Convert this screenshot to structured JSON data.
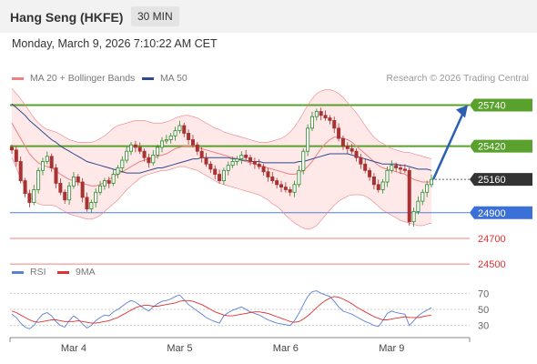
{
  "header": {
    "title": "Hang Seng (HKFE)",
    "timeframe": "30 MIN"
  },
  "date_line": "Monday, March 9, 2026 7:10:22 AM CET",
  "legend": {
    "bb_label": "MA 20 + Bollinger Bands",
    "ma50_label": "MA 50",
    "rsi_label": "RSI",
    "rsi_ma_label": "9MA"
  },
  "research_label": "Research © 2026 Trading Central",
  "colors": {
    "bb": "#f08080",
    "bb_fill": "#fde0e0",
    "ma50": "#2c4a8c",
    "resistance": "#5aa02c",
    "pivot": "#4a80e0",
    "support": "#f08080",
    "candle_up": "#2a8a2a",
    "candle_down": "#a83232",
    "rsi": "#5b80d8",
    "rsi_ma": "#e03030",
    "arrow": "#2c5fb0"
  },
  "chart_data": [
    {
      "type": "candlestick",
      "title": "",
      "x_ticks": [
        "Mar 4",
        "Mar 5",
        "Mar 6",
        "Mar 9"
      ],
      "y_range": [
        24430,
        25850
      ],
      "levels": [
        {
          "value": 25740,
          "label": "25740",
          "kind": "resistance"
        },
        {
          "value": 25420,
          "label": "25420",
          "kind": "resistance"
        },
        {
          "value": 25160,
          "label": "25160",
          "kind": "last"
        },
        {
          "value": 24900,
          "label": "24900",
          "kind": "pivot"
        },
        {
          "value": 24700,
          "label": "24700",
          "kind": "support"
        },
        {
          "value": 24500,
          "label": "24500",
          "kind": "support"
        }
      ],
      "close": [
        25390,
        25300,
        25150,
        25050,
        24980,
        25080,
        25230,
        25300,
        25340,
        25250,
        25130,
        25060,
        25000,
        25110,
        25180,
        25140,
        25020,
        24930,
        24980,
        25060,
        25110,
        25150,
        25130,
        25200,
        25250,
        25310,
        25380,
        25430,
        25410,
        25380,
        25330,
        25290,
        25350,
        25410,
        25460,
        25470,
        25500,
        25540,
        25580,
        25520,
        25470,
        25430,
        25380,
        25330,
        25280,
        25240,
        25200,
        25150,
        25230,
        25270,
        25300,
        25320,
        25350,
        25330,
        25300,
        25280,
        25260,
        25220,
        25180,
        25150,
        25120,
        25100,
        25080,
        25060,
        25120,
        25230,
        25380,
        25560,
        25650,
        25690,
        25660,
        25640,
        25620,
        25560,
        25480,
        25420,
        25400,
        25380,
        25330,
        25280,
        25230,
        25180,
        25120,
        25080,
        25140,
        25230,
        25270,
        25250,
        25240,
        25230,
        24830,
        24910,
        24990,
        25060,
        25120,
        25160
      ],
      "ma20": [
        25600,
        25540,
        25480,
        25420,
        25360,
        25320,
        25290,
        25270,
        25260,
        25250,
        25230,
        25200,
        25180,
        25160,
        25150,
        25140,
        25130,
        25120,
        25110,
        25110,
        25120,
        25140,
        25160,
        25180,
        25200,
        25220,
        25240,
        25260,
        25280,
        25300,
        25310,
        25320,
        25330,
        25340,
        25350,
        25360,
        25380,
        25400,
        25410,
        25420,
        25420,
        25420,
        25410,
        25400,
        25390,
        25380,
        25370,
        25360,
        25350,
        25340,
        25330,
        25320,
        25310,
        25300,
        25290,
        25280,
        25270,
        25260,
        25250,
        25240,
        25230,
        25220,
        25210,
        25200,
        25200,
        25210,
        25230,
        25260,
        25300,
        25350,
        25400,
        25440,
        25470,
        25490,
        25490,
        25480,
        25470,
        25450,
        25420,
        25390,
        25360,
        25330,
        25300,
        25270,
        25250,
        25240,
        25230,
        25220,
        25210,
        25200,
        25180,
        25160,
        25150,
        25140,
        25140,
        25140
      ],
      "bb_upper": [
        25870,
        25830,
        25790,
        25740,
        25690,
        25640,
        25600,
        25570,
        25550,
        25540,
        25530,
        25510,
        25490,
        25470,
        25460,
        25450,
        25450,
        25450,
        25450,
        25460,
        25480,
        25500,
        25530,
        25560,
        25580,
        25590,
        25600,
        25610,
        25620,
        25620,
        25620,
        25610,
        25600,
        25600,
        25600,
        25610,
        25620,
        25640,
        25650,
        25660,
        25660,
        25650,
        25640,
        25620,
        25600,
        25580,
        25560,
        25550,
        25530,
        25520,
        25510,
        25500,
        25490,
        25480,
        25470,
        25460,
        25450,
        25450,
        25450,
        25460,
        25470,
        25480,
        25500,
        25530,
        25570,
        25620,
        25680,
        25740,
        25790,
        25830,
        25850,
        25860,
        25860,
        25850,
        25830,
        25800,
        25760,
        25720,
        25680,
        25630,
        25580,
        25530,
        25490,
        25460,
        25440,
        25420,
        25400,
        25390,
        25380,
        25370,
        25370,
        25360,
        25350,
        25340,
        25330,
        25320
      ],
      "bb_lower": [
        25330,
        25250,
        25170,
        25100,
        25030,
        24990,
        24970,
        24960,
        24960,
        24960,
        24950,
        24930,
        24910,
        24890,
        24880,
        24870,
        24860,
        24850,
        24850,
        24860,
        24880,
        24910,
        24940,
        24970,
        25000,
        25040,
        25080,
        25110,
        25140,
        25170,
        25190,
        25200,
        25210,
        25220,
        25230,
        25230,
        25240,
        25250,
        25260,
        25260,
        25250,
        25240,
        25230,
        25210,
        25190,
        25170,
        25150,
        25130,
        25120,
        25110,
        25100,
        25090,
        25080,
        25070,
        25060,
        25050,
        25040,
        25020,
        25000,
        24970,
        24950,
        24920,
        24880,
        24850,
        24820,
        24800,
        24780,
        24770,
        24780,
        24800,
        24840,
        24880,
        24920,
        24960,
        24990,
        25010,
        25030,
        25040,
        25040,
        25040,
        25030,
        25010,
        24980,
        24950,
        24920,
        24900,
        24880,
        24860,
        24840,
        24830,
        24820,
        24810,
        24800,
        24800,
        24810,
        24820
      ],
      "ma50": [
        25750,
        25720,
        25690,
        25660,
        25620,
        25590,
        25560,
        25530,
        25500,
        25470,
        25450,
        25420,
        25400,
        25380,
        25360,
        25340,
        25320,
        25300,
        25290,
        25280,
        25270,
        25260,
        25250,
        25240,
        25230,
        25220,
        25210,
        25210,
        25210,
        25210,
        25220,
        25230,
        25240,
        25250,
        25250,
        25260,
        25270,
        25280,
        25290,
        25300,
        25310,
        25320,
        25320,
        25330,
        25330,
        25330,
        25330,
        25330,
        25330,
        25330,
        25320,
        25320,
        25310,
        25310,
        25300,
        25300,
        25300,
        25290,
        25290,
        25290,
        25290,
        25290,
        25290,
        25290,
        25290,
        25300,
        25300,
        25310,
        25320,
        25330,
        25340,
        25350,
        25360,
        25360,
        25360,
        25360,
        25360,
        25350,
        25340,
        25330,
        25320,
        25310,
        25300,
        25290,
        25280,
        25280,
        25280,
        25280,
        25270,
        25270,
        25260,
        25250,
        25240,
        25240,
        25240,
        25230
      ]
    },
    {
      "type": "line",
      "title": "",
      "series_names": [
        "RSI",
        "9MA"
      ],
      "y_ticks": [
        70,
        50,
        30
      ],
      "y_range": [
        15,
        85
      ],
      "rsi": [
        44,
        40,
        33,
        28,
        26,
        30,
        38,
        44,
        46,
        42,
        35,
        30,
        28,
        36,
        42,
        38,
        32,
        27,
        30,
        36,
        40,
        43,
        42,
        47,
        50,
        54,
        58,
        61,
        59,
        55,
        51,
        48,
        53,
        57,
        60,
        61,
        63,
        66,
        68,
        62,
        56,
        52,
        48,
        44,
        40,
        37,
        35,
        33,
        42,
        46,
        49,
        51,
        53,
        50,
        47,
        45,
        43,
        40,
        37,
        35,
        33,
        32,
        31,
        30,
        36,
        45,
        56,
        66,
        72,
        73,
        70,
        68,
        66,
        60,
        53,
        48,
        46,
        44,
        41,
        38,
        35,
        33,
        30,
        29,
        36,
        45,
        48,
        46,
        45,
        44,
        30,
        36,
        42,
        46,
        49,
        52
      ],
      "rsi_ma": [
        48,
        46,
        43,
        40,
        37,
        35,
        34,
        35,
        36,
        37,
        37,
        36,
        35,
        35,
        35,
        36,
        35,
        34,
        33,
        33,
        34,
        35,
        36,
        38,
        40,
        43,
        46,
        49,
        52,
        54,
        55,
        55,
        54,
        54,
        55,
        56,
        57,
        58,
        60,
        61,
        61,
        60,
        58,
        56,
        53,
        50,
        47,
        45,
        43,
        42,
        42,
        43,
        44,
        45,
        46,
        47,
        47,
        46,
        45,
        43,
        41,
        39,
        37,
        35,
        34,
        35,
        38,
        42,
        47,
        52,
        57,
        61,
        64,
        66,
        65,
        63,
        60,
        57,
        53,
        50,
        47,
        44,
        41,
        39,
        37,
        37,
        38,
        39,
        40,
        41,
        40,
        40,
        40,
        41,
        42,
        43
      ]
    }
  ]
}
